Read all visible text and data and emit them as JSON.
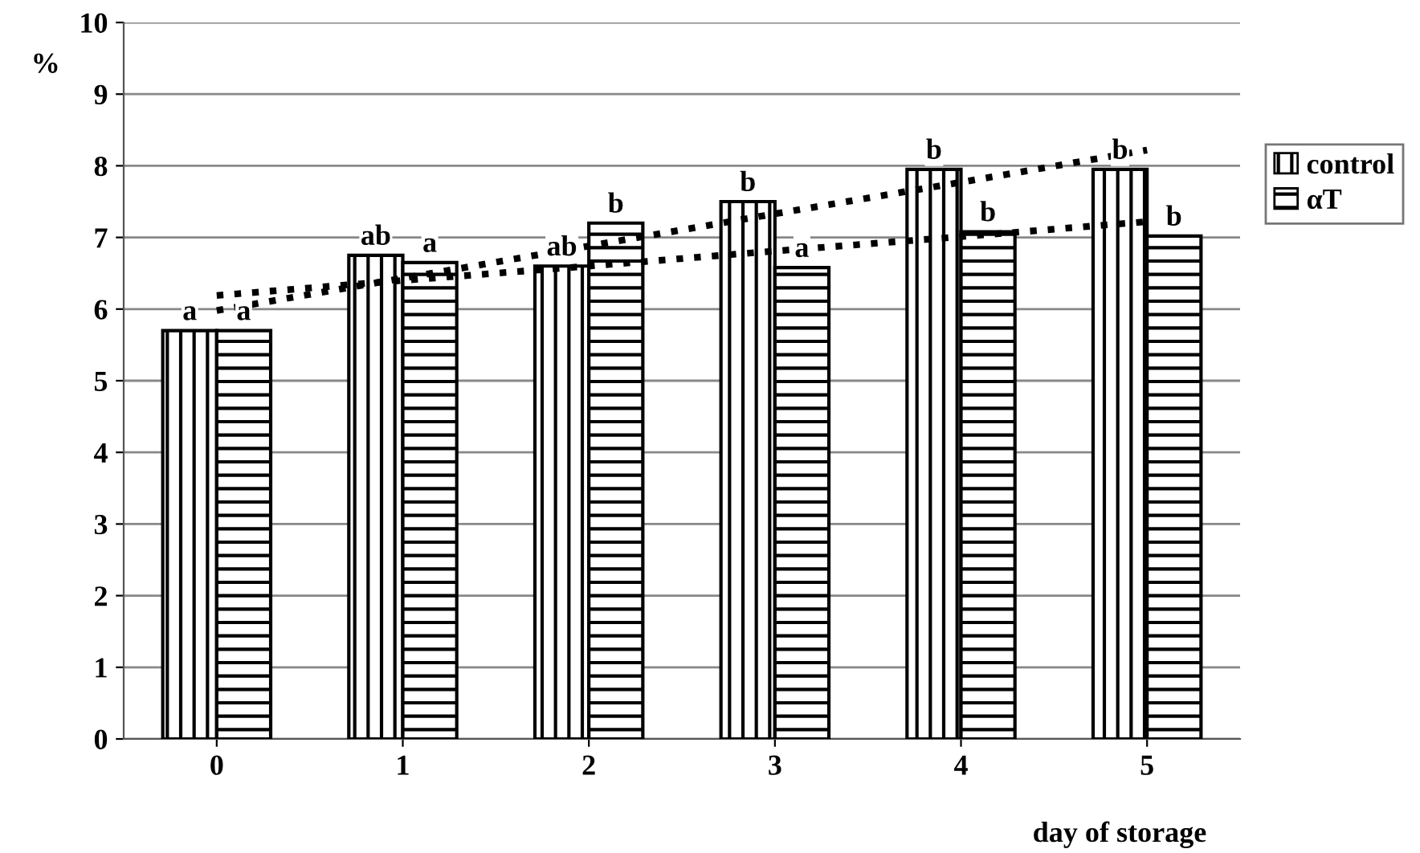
{
  "chart_data": {
    "type": "bar",
    "ylabel": "%",
    "xlabel": "day of storage",
    "categories": [
      "0",
      "1",
      "2",
      "3",
      "4",
      "5"
    ],
    "series": [
      {
        "name": "control",
        "color": "#000000",
        "values": [
          5.7,
          6.75,
          6.6,
          7.5,
          7.95,
          7.95
        ],
        "value_labels": [
          "a",
          "ab",
          "ab",
          "b",
          "b",
          "b"
        ]
      },
      {
        "name": "αT",
        "color": "#000000",
        "values": [
          5.7,
          6.65,
          7.2,
          6.58,
          7.08,
          7.02
        ],
        "value_labels": [
          "a",
          "a",
          "b",
          "a",
          "b",
          "b"
        ]
      },
      {
        "type": "line",
        "color": "#000000",
        "line_style": "dotted",
        "values": [
          5.98,
          6.43,
          6.88,
          7.33,
          7.77,
          8.22
        ]
      },
      {
        "type": "line",
        "color": "#000000",
        "line_style": "dotted",
        "values": [
          6.19,
          6.4,
          6.6,
          6.81,
          7.01,
          7.22
        ]
      }
    ],
    "ylim": [
      0,
      10
    ],
    "yticks": [
      0,
      1,
      2,
      3,
      4,
      5,
      6,
      7,
      8,
      9,
      10
    ],
    "grid": "y",
    "legend": "right"
  }
}
